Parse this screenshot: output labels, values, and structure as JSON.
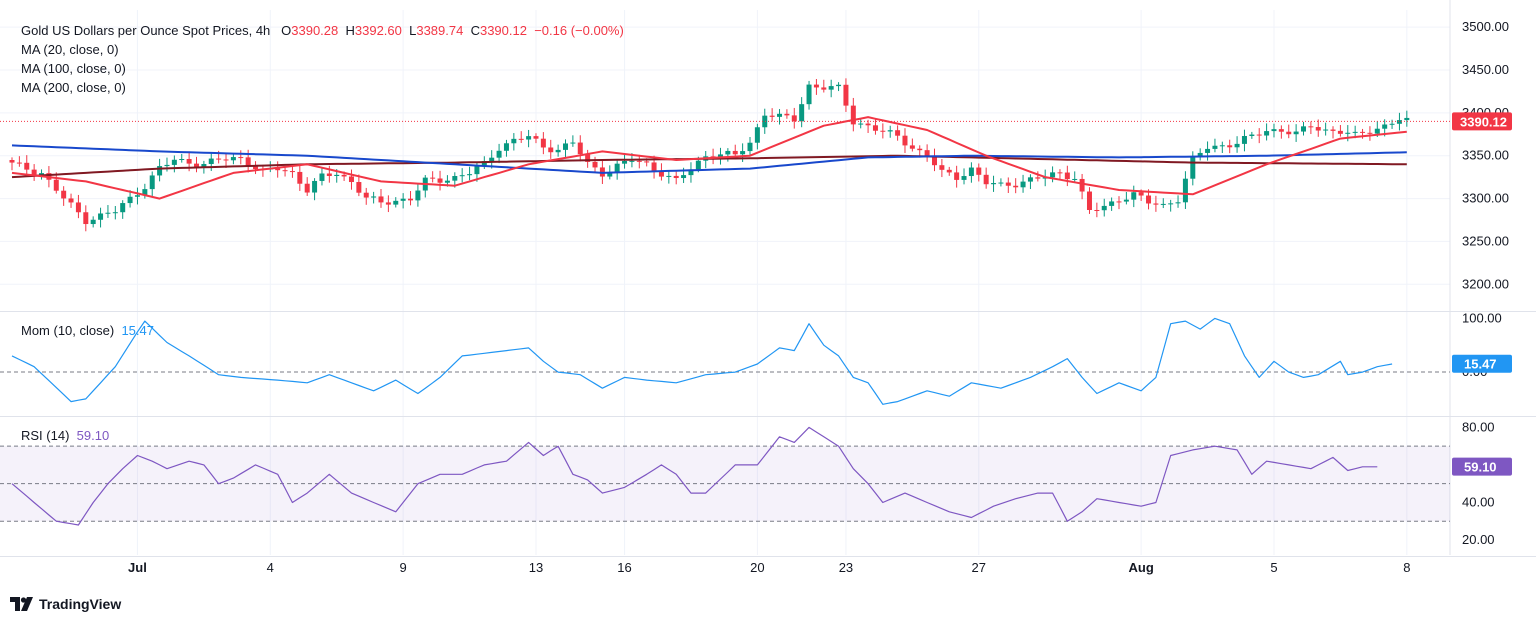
{
  "header": {
    "symbol": "Gold US Dollars per Ounce Spot Prices, 4h",
    "open_label": "O",
    "open": "3390.28",
    "high_label": "H",
    "high": "3392.60",
    "low_label": "L",
    "low": "3389.74",
    "close_label": "C",
    "close": "3390.12",
    "change": "−0.16 (−0.00%)",
    "ma1": "MA (20, close, 0)",
    "ma2": "MA (100, close, 0)",
    "ma3": "MA (200, close, 0)"
  },
  "mom_legend": {
    "label": "Mom (10, close)",
    "value": "15.47"
  },
  "rsi_legend": {
    "label": "RSI (14)",
    "value": "59.10"
  },
  "brand": {
    "name": "TradingView",
    "icon": "tradingview-logo-icon"
  },
  "colors": {
    "up": "#089981",
    "down": "#f23645",
    "ma20": "#f23645",
    "ma100": "#1848cc",
    "ma200": "#801922",
    "mom": "#2196f3",
    "rsi": "#7e57c2",
    "rsi_band": "#7e57c2"
  },
  "chart_data": [
    {
      "type": "candlestick",
      "title": "Gold US Dollars per Ounce Spot Prices, 4h",
      "ylim": [
        3170,
        3520
      ],
      "y_ticks": [
        "3500.00",
        "3450.00",
        "3400.00",
        "3350.00",
        "3300.00",
        "3250.00",
        "3200.00"
      ],
      "x_ticks": [
        "Jul",
        "4",
        "9",
        "13",
        "16",
        "20",
        "23",
        "27",
        "Aug",
        "5",
        "8"
      ],
      "last_price": "3390.12",
      "anchors_close": [
        [
          0,
          3340
        ],
        [
          4,
          3330
        ],
        [
          7,
          3300
        ],
        [
          10,
          3275
        ],
        [
          12,
          3280
        ],
        [
          14,
          3285
        ],
        [
          16,
          3300
        ],
        [
          18,
          3315
        ],
        [
          20,
          3335
        ],
        [
          22,
          3345
        ],
        [
          26,
          3340
        ],
        [
          28,
          3345
        ],
        [
          31,
          3348
        ],
        [
          34,
          3330
        ],
        [
          36,
          3335
        ],
        [
          38,
          3330
        ],
        [
          40,
          3310
        ],
        [
          42,
          3325
        ],
        [
          44,
          3330
        ],
        [
          46,
          3320
        ],
        [
          48,
          3300
        ],
        [
          50,
          3295
        ],
        [
          52,
          3298
        ],
        [
          54,
          3300
        ],
        [
          56,
          3320
        ],
        [
          58,
          3322
        ],
        [
          60,
          3325
        ],
        [
          62,
          3330
        ],
        [
          64,
          3340
        ],
        [
          66,
          3360
        ],
        [
          68,
          3368
        ],
        [
          70,
          3372
        ],
        [
          72,
          3360
        ],
        [
          74,
          3358
        ],
        [
          76,
          3365
        ],
        [
          78,
          3340
        ],
        [
          80,
          3330
        ],
        [
          82,
          3338
        ],
        [
          84,
          3345
        ],
        [
          86,
          3340
        ],
        [
          88,
          3330
        ],
        [
          90,
          3320
        ],
        [
          92,
          3335
        ],
        [
          94,
          3350
        ],
        [
          96,
          3352
        ],
        [
          98,
          3350
        ],
        [
          100,
          3365
        ],
        [
          102,
          3400
        ],
        [
          104,
          3395
        ],
        [
          106,
          3392
        ],
        [
          108,
          3432
        ],
        [
          110,
          3430
        ],
        [
          112,
          3428
        ],
        [
          114,
          3390
        ],
        [
          116,
          3385
        ],
        [
          118,
          3378
        ],
        [
          120,
          3372
        ],
        [
          122,
          3360
        ],
        [
          124,
          3350
        ],
        [
          126,
          3330
        ],
        [
          128,
          3325
        ],
        [
          130,
          3335
        ],
        [
          132,
          3318
        ],
        [
          134,
          3315
        ],
        [
          136,
          3318
        ],
        [
          138,
          3322
        ],
        [
          140,
          3325
        ],
        [
          142,
          3330
        ],
        [
          144,
          3325
        ],
        [
          146,
          3285
        ],
        [
          148,
          3290
        ],
        [
          150,
          3300
        ],
        [
          152,
          3305
        ],
        [
          154,
          3295
        ],
        [
          156,
          3292
        ],
        [
          158,
          3300
        ],
        [
          160,
          3345
        ],
        [
          162,
          3360
        ],
        [
          164,
          3362
        ],
        [
          166,
          3365
        ],
        [
          168,
          3372
        ],
        [
          170,
          3380
        ],
        [
          172,
          3380
        ],
        [
          174,
          3375
        ],
        [
          176,
          3385
        ],
        [
          178,
          3380
        ],
        [
          180,
          3378
        ],
        [
          182,
          3373
        ],
        [
          184,
          3380
        ],
        [
          186,
          3385
        ],
        [
          188,
          3392
        ],
        [
          189,
          3390
        ]
      ],
      "ma20_ref": [
        [
          0,
          3330
        ],
        [
          10,
          3320
        ],
        [
          20,
          3300
        ],
        [
          30,
          3330
        ],
        [
          40,
          3340
        ],
        [
          50,
          3320
        ],
        [
          60,
          3315
        ],
        [
          70,
          3340
        ],
        [
          80,
          3355
        ],
        [
          90,
          3345
        ],
        [
          100,
          3350
        ],
        [
          110,
          3385
        ],
        [
          116,
          3395
        ],
        [
          124,
          3380
        ],
        [
          132,
          3350
        ],
        [
          140,
          3325
        ],
        [
          150,
          3310
        ],
        [
          160,
          3305
        ],
        [
          170,
          3340
        ],
        [
          180,
          3370
        ],
        [
          189,
          3378
        ]
      ],
      "ma100_ref": [
        [
          0,
          3362
        ],
        [
          20,
          3355
        ],
        [
          40,
          3350
        ],
        [
          60,
          3340
        ],
        [
          80,
          3330
        ],
        [
          100,
          3335
        ],
        [
          116,
          3348
        ],
        [
          130,
          3350
        ],
        [
          150,
          3348
        ],
        [
          170,
          3350
        ],
        [
          189,
          3354
        ]
      ],
      "ma200_ref": [
        [
          0,
          3325
        ],
        [
          20,
          3335
        ],
        [
          40,
          3340
        ],
        [
          60,
          3342
        ],
        [
          80,
          3345
        ],
        [
          100,
          3347
        ],
        [
          120,
          3350
        ],
        [
          140,
          3346
        ],
        [
          160,
          3342
        ],
        [
          189,
          3340
        ]
      ]
    },
    {
      "type": "line",
      "name": "Mom (10, close)",
      "ylim": [
        -80,
        110
      ],
      "y_ticks": [
        "100.00",
        "0.00"
      ],
      "last_value": "15.47",
      "anchors": [
        [
          0,
          30
        ],
        [
          3,
          10
        ],
        [
          8,
          -55
        ],
        [
          10,
          -50
        ],
        [
          14,
          10
        ],
        [
          17,
          75
        ],
        [
          18,
          95
        ],
        [
          21,
          55
        ],
        [
          24,
          30
        ],
        [
          28,
          -5
        ],
        [
          31,
          -10
        ],
        [
          36,
          -15
        ],
        [
          40,
          -20
        ],
        [
          43,
          -5
        ],
        [
          46,
          -20
        ],
        [
          49,
          -35
        ],
        [
          52,
          -15
        ],
        [
          55,
          -40
        ],
        [
          58,
          -10
        ],
        [
          61,
          30
        ],
        [
          64,
          35
        ],
        [
          67,
          40
        ],
        [
          70,
          45
        ],
        [
          72,
          20
        ],
        [
          74,
          0
        ],
        [
          77,
          -5
        ],
        [
          80,
          -30
        ],
        [
          83,
          -10
        ],
        [
          86,
          -15
        ],
        [
          90,
          -20
        ],
        [
          94,
          -5
        ],
        [
          98,
          0
        ],
        [
          101,
          15
        ],
        [
          104,
          45
        ],
        [
          106,
          40
        ],
        [
          108,
          90
        ],
        [
          110,
          50
        ],
        [
          112,
          30
        ],
        [
          114,
          -10
        ],
        [
          116,
          -20
        ],
        [
          118,
          -60
        ],
        [
          120,
          -55
        ],
        [
          124,
          -35
        ],
        [
          127,
          -45
        ],
        [
          130,
          -20
        ],
        [
          134,
          -30
        ],
        [
          138,
          -10
        ],
        [
          141,
          10
        ],
        [
          143,
          25
        ],
        [
          145,
          -10
        ],
        [
          147,
          -40
        ],
        [
          150,
          -20
        ],
        [
          153,
          -35
        ],
        [
          155,
          -10
        ],
        [
          157,
          90
        ],
        [
          159,
          95
        ],
        [
          161,
          80
        ],
        [
          163,
          100
        ],
        [
          165,
          90
        ],
        [
          167,
          30
        ],
        [
          169,
          -10
        ],
        [
          171,
          20
        ],
        [
          173,
          0
        ],
        [
          175,
          -10
        ],
        [
          177,
          -5
        ],
        [
          180,
          20
        ],
        [
          181,
          -5
        ],
        [
          183,
          0
        ],
        [
          185,
          10
        ],
        [
          187,
          15
        ]
      ]
    },
    {
      "type": "line",
      "name": "RSI (14)",
      "ylim": [
        12,
        85
      ],
      "y_ticks": [
        "80.00",
        "40.00",
        "20.00"
      ],
      "bands": [
        70,
        50,
        30
      ],
      "last_value": "59.10",
      "anchors": [
        [
          0,
          50
        ],
        [
          3,
          40
        ],
        [
          6,
          30
        ],
        [
          9,
          28
        ],
        [
          11,
          40
        ],
        [
          13,
          50
        ],
        [
          15,
          58
        ],
        [
          17,
          65
        ],
        [
          19,
          62
        ],
        [
          21,
          58
        ],
        [
          24,
          62
        ],
        [
          26,
          60
        ],
        [
          28,
          50
        ],
        [
          30,
          53
        ],
        [
          33,
          60
        ],
        [
          36,
          55
        ],
        [
          38,
          40
        ],
        [
          40,
          45
        ],
        [
          43,
          55
        ],
        [
          46,
          45
        ],
        [
          49,
          40
        ],
        [
          52,
          35
        ],
        [
          55,
          50
        ],
        [
          58,
          55
        ],
        [
          61,
          55
        ],
        [
          64,
          60
        ],
        [
          67,
          62
        ],
        [
          70,
          72
        ],
        [
          72,
          65
        ],
        [
          74,
          70
        ],
        [
          76,
          55
        ],
        [
          78,
          52
        ],
        [
          80,
          45
        ],
        [
          83,
          48
        ],
        [
          86,
          55
        ],
        [
          88,
          60
        ],
        [
          90,
          55
        ],
        [
          92,
          45
        ],
        [
          94,
          45
        ],
        [
          98,
          60
        ],
        [
          101,
          60
        ],
        [
          104,
          75
        ],
        [
          106,
          72
        ],
        [
          108,
          80
        ],
        [
          110,
          75
        ],
        [
          112,
          70
        ],
        [
          114,
          58
        ],
        [
          116,
          50
        ],
        [
          118,
          40
        ],
        [
          121,
          45
        ],
        [
          124,
          40
        ],
        [
          127,
          35
        ],
        [
          130,
          32
        ],
        [
          133,
          38
        ],
        [
          136,
          42
        ],
        [
          139,
          45
        ],
        [
          141,
          45
        ],
        [
          143,
          30
        ],
        [
          145,
          35
        ],
        [
          147,
          42
        ],
        [
          150,
          40
        ],
        [
          153,
          38
        ],
        [
          155,
          40
        ],
        [
          157,
          65
        ],
        [
          160,
          68
        ],
        [
          163,
          70
        ],
        [
          166,
          68
        ],
        [
          168,
          55
        ],
        [
          170,
          62
        ],
        [
          173,
          60
        ],
        [
          176,
          58
        ],
        [
          179,
          64
        ],
        [
          181,
          57
        ],
        [
          183,
          59
        ],
        [
          185,
          59
        ]
      ]
    }
  ]
}
